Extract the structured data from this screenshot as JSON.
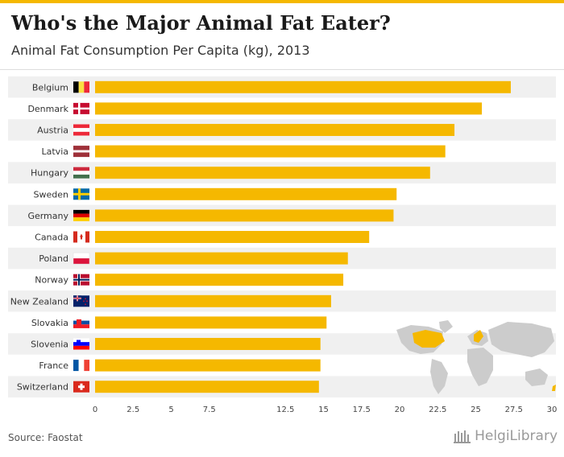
{
  "title": "Who's the Major Animal Fat Eater?",
  "subtitle": "Animal Fat Consumption Per Capita (kg), 2013",
  "source": "Source: Faostat",
  "brand": "HelgiLibrary",
  "colors": {
    "bar": "#f5b800",
    "accent": "#f5b800",
    "map_land": "#cccccc",
    "map_highlight": "#f5b800"
  },
  "chart_data": {
    "type": "bar",
    "orientation": "horizontal",
    "title": "Who's the Major Animal Fat Eater?",
    "subtitle": "Animal Fat Consumption Per Capita (kg), 2013",
    "xlabel": "",
    "ylabel": "",
    "xlim": [
      0,
      30
    ],
    "xticks": [
      0,
      2.5,
      5,
      7.5,
      12.5,
      15,
      17.5,
      20,
      22.5,
      25,
      27.5,
      30
    ],
    "xtick_labels": [
      "0",
      "2.5",
      "5",
      "7.5",
      "12.5",
      "15",
      "17.5",
      "20",
      "22.5",
      "25",
      "27.5",
      "30"
    ],
    "categories": [
      "Belgium",
      "Denmark",
      "Austria",
      "Latvia",
      "Hungary",
      "Sweden",
      "Germany",
      "Canada",
      "Poland",
      "Norway",
      "New Zealand",
      "Slovakia",
      "Slovenia",
      "France",
      "Switzerland"
    ],
    "values": [
      27.3,
      25.4,
      23.6,
      23.0,
      22.0,
      19.8,
      19.6,
      18.0,
      16.6,
      16.3,
      15.5,
      15.2,
      14.8,
      14.8,
      14.7
    ],
    "flags": [
      "belgium-flag",
      "denmark-flag",
      "austria-flag",
      "latvia-flag",
      "hungary-flag",
      "sweden-flag",
      "germany-flag",
      "canada-flag",
      "poland-flag",
      "norway-flag",
      "new-zealand-flag",
      "slovakia-flag",
      "slovenia-flag",
      "france-flag",
      "switzerland-flag"
    ],
    "grid": false
  }
}
